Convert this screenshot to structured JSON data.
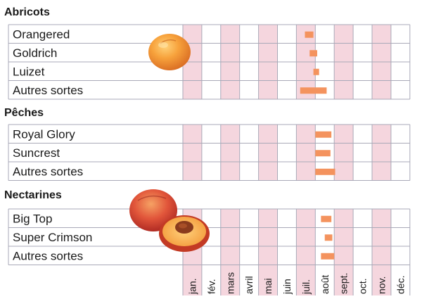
{
  "chart_data": {
    "type": "bar",
    "subtype": "gantt-calendar",
    "months": [
      "jan.",
      "fév.",
      "mars",
      "avril",
      "mai",
      "juin",
      "juil.",
      "août",
      "sept.",
      "oct.",
      "nov.",
      "déc."
    ],
    "groups": [
      {
        "title": "Abricots",
        "rows": [
          {
            "label": "Orangered",
            "start": 6.45,
            "end": 6.9
          },
          {
            "label": "Goldrich",
            "start": 6.7,
            "end": 7.1
          },
          {
            "label": "Luizet",
            "start": 6.9,
            "end": 7.2
          },
          {
            "label": "Autres sortes",
            "start": 6.2,
            "end": 7.6
          }
        ]
      },
      {
        "title": "Pêches",
        "rows": [
          {
            "label": "Royal Glory",
            "start": 7.0,
            "end": 7.85
          },
          {
            "label": "Suncrest",
            "start": 7.0,
            "end": 7.8
          },
          {
            "label": "Autres sortes",
            "start": 7.0,
            "end": 8.05
          }
        ]
      },
      {
        "title": "Nectarines",
        "rows": [
          {
            "label": "Big Top",
            "start": 7.3,
            "end": 7.85
          },
          {
            "label": "Super Crimson",
            "start": 7.5,
            "end": 7.9
          },
          {
            "label": "Autres sortes",
            "start": 7.3,
            "end": 8.0
          }
        ]
      }
    ],
    "colors": {
      "bar": "#f4935e",
      "stripe": "#f5d6de",
      "grid": "#a9a9b8"
    },
    "legend": "none"
  }
}
